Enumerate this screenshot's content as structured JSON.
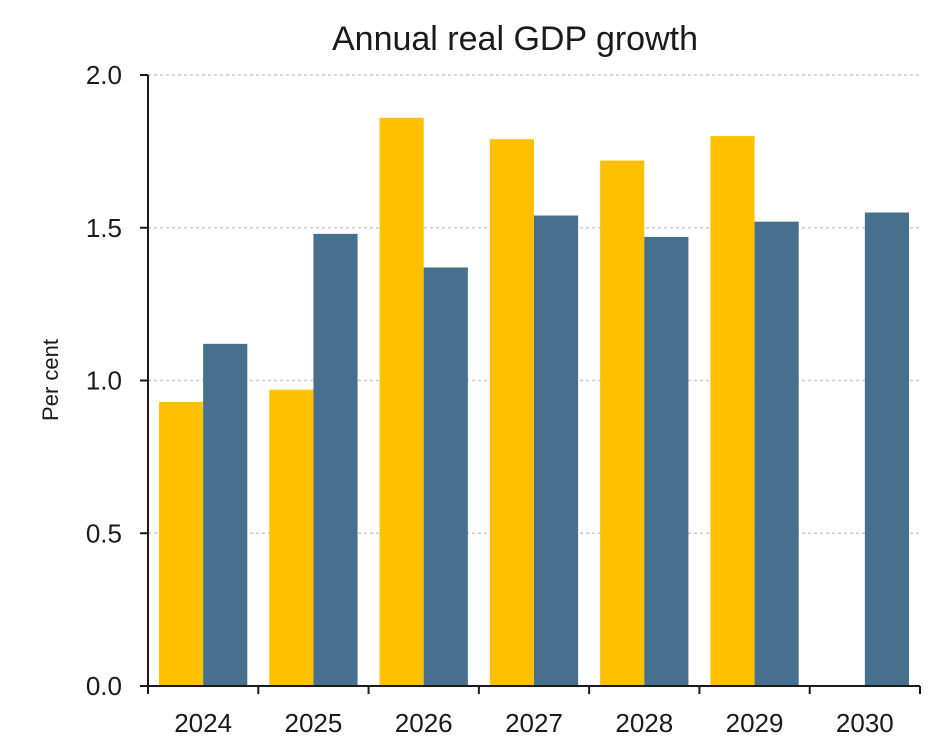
{
  "chart_data": {
    "type": "bar",
    "title": "Annual real GDP growth",
    "xlabel": "",
    "ylabel": "Per cent",
    "ylim": [
      0,
      2.0
    ],
    "yticks": [
      0.0,
      0.5,
      1.0,
      1.5,
      2.0
    ],
    "ytick_labels": [
      "0.0",
      "0.5",
      "1.0",
      "1.5",
      "2.0"
    ],
    "grid": true,
    "legend": "none",
    "categories": [
      "2024",
      "2025",
      "2026",
      "2027",
      "2028",
      "2029",
      "2030"
    ],
    "series": [
      {
        "name": "Series 1",
        "color": "#FFC000",
        "values": [
          0.93,
          0.97,
          1.86,
          1.79,
          1.72,
          1.8,
          null
        ]
      },
      {
        "name": "Series 2",
        "color": "#46708E",
        "values": [
          1.12,
          1.48,
          1.37,
          1.54,
          1.47,
          1.52,
          1.55
        ]
      }
    ]
  }
}
